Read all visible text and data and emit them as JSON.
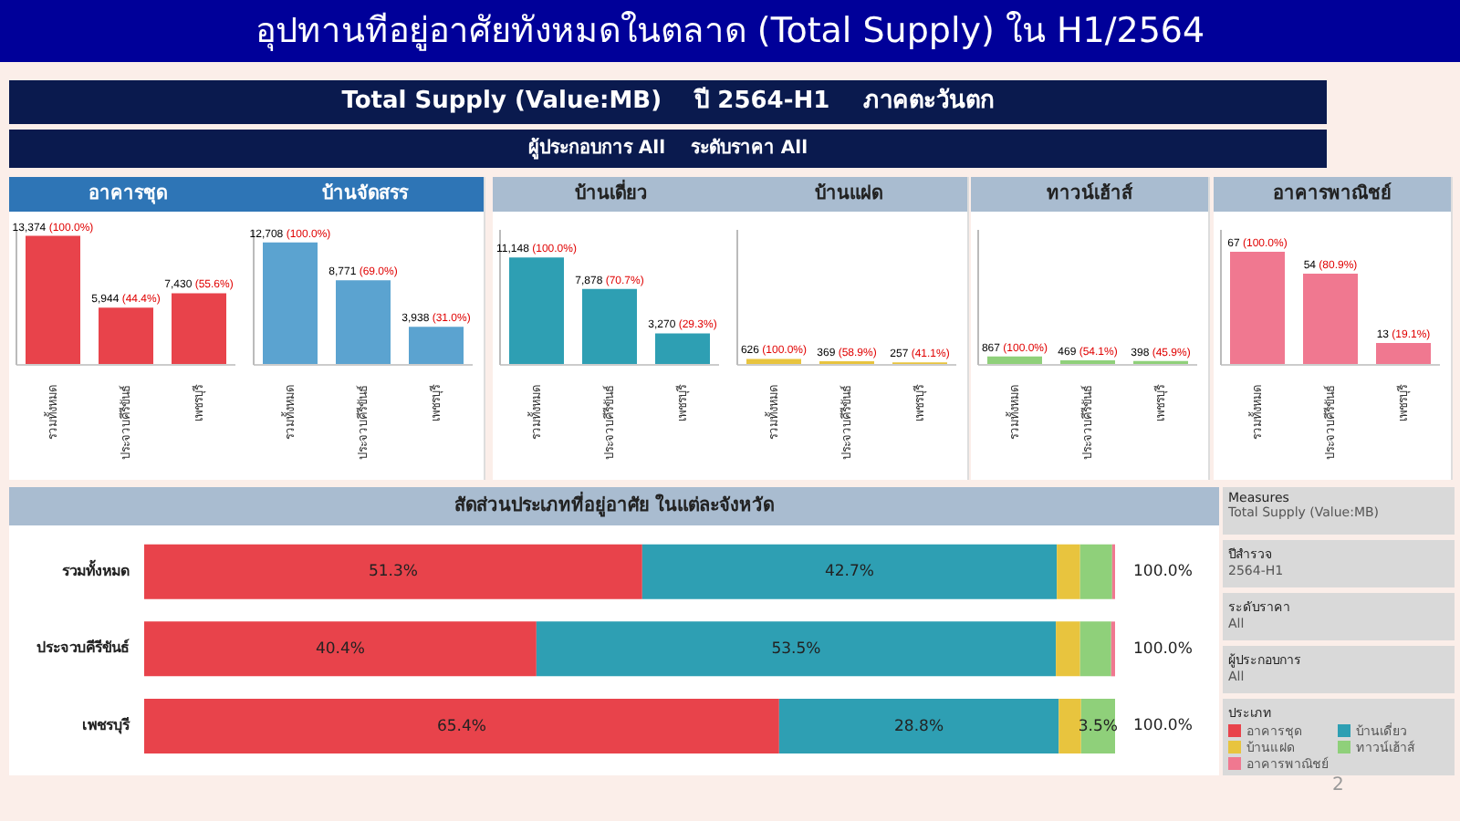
{
  "chart_data": [
    {
      "type": "other",
      "title": "อุปทานทีอยู่อาศัยทังหมดในตลาด (Total Supply) ใน H1/2564",
      "subtitle": "Total Supply (Value:MB)    ปี 2564-H1    ภาคตะวันตก",
      "annotations": [
        "ผู้ประกอบการ All    ระดับราคา All",
        "2"
      ]
    },
    {
      "type": "bar",
      "title": "อาคารชุด",
      "categories": [
        "รวมทั้งหมด",
        "ประจวบคีรีขันธ์",
        "เพชรบุรี"
      ],
      "values": [
        13374,
        5944,
        7430
      ],
      "value_labels": [
        "13,374 (100.0%)",
        "5,944 (44.4%)",
        "7,430 (55.6%)"
      ],
      "color": "#e8434b",
      "ylim": [
        0,
        14000
      ],
      "tick_labels": "x"
    },
    {
      "type": "bar",
      "title": "บ้านจัดสรร",
      "categories": [
        "รวมทั้งหมด",
        "ประจวบคีรีขันธ์",
        "เพชรบุรี"
      ],
      "values": [
        12708,
        8771,
        3938
      ],
      "value_labels": [
        "12,708 (100.0%)",
        "8,771 (69.0%)",
        "3,938 (31.0%)"
      ],
      "color": "#5ba3d0",
      "ylim": [
        0,
        14000
      ],
      "tick_labels": "x"
    },
    {
      "type": "bar",
      "title": "บ้านเดี่ยว",
      "categories": [
        "รวมทั้งหมด",
        "ประจวบคีรีขันธ์",
        "เพชรบุรี"
      ],
      "values": [
        11148,
        7878,
        3270
      ],
      "value_labels": [
        "11,148 (100.0%)",
        "7,878 (70.7%)",
        "3,270 (29.3%)"
      ],
      "color": "#2e9fb3",
      "ylim": [
        0,
        14000
      ],
      "tick_labels": "x"
    },
    {
      "type": "bar",
      "title": "บ้านแฝด",
      "categories": [
        "รวมทั้งหมด",
        "ประจวบคีรีขันธ์",
        "เพชรบุรี"
      ],
      "values": [
        626,
        369,
        257
      ],
      "value_labels": [
        "626 (100.0%)",
        "369 (58.9%)",
        "257 (41.1%)"
      ],
      "color": "#e8c43e",
      "ylim": [
        0,
        14000
      ],
      "tick_labels": "x"
    },
    {
      "type": "bar",
      "title": "ทาวน์เฮ้าส์",
      "categories": [
        "รวมทั้งหมด",
        "ประจวบคีรีขันธ์",
        "เพชรบุรี"
      ],
      "values": [
        867,
        469,
        398
      ],
      "value_labels": [
        "867 (100.0%)",
        "469 (54.1%)",
        "398 (45.9%)"
      ],
      "color": "#8fd07a",
      "ylim": [
        0,
        14000
      ],
      "tick_labels": "x"
    },
    {
      "type": "bar",
      "title": "อาคารพาณิชย์",
      "categories": [
        "รวมทั้งหมด",
        "ประจวบคีรีขันธ์",
        "เพชรบุรี"
      ],
      "values": [
        67,
        54,
        13
      ],
      "value_labels": [
        "67 (100.0%)",
        "54 (80.9%)",
        "13 (19.1%)"
      ],
      "color": "#f07890",
      "tick_labels": "x"
    },
    {
      "type": "bar",
      "orientation": "horizontal",
      "stacked": true,
      "title": "สัดส่วนประเภทที่อยู่อาศัย ในแต่ละจังหวัด",
      "categories": [
        "รวมทั้งหมด",
        "ประจวบคีรีขันธ์",
        "เพชรบุรี"
      ],
      "xlim": [
        0,
        100
      ],
      "tick_labels": "y",
      "legend": "right",
      "legend_title": "ประเภท",
      "totals": [
        "100.0%",
        "100.0%",
        "100.0%"
      ],
      "series": [
        {
          "name": "อาคารชุด",
          "color": "#e8434b",
          "values": [
            51.3,
            40.4,
            65.4
          ],
          "value_labels": [
            "51.3%",
            "40.4%",
            "65.4%"
          ]
        },
        {
          "name": "บ้านเดี่ยว",
          "color": "#2e9fb3",
          "values": [
            42.7,
            53.5,
            28.8
          ],
          "value_labels": [
            "42.7%",
            "53.5%",
            "28.8%"
          ]
        },
        {
          "name": "บ้านแฝด",
          "color": "#e8c43e",
          "values": [
            2.4,
            2.5,
            2.3
          ]
        },
        {
          "name": "ทาวน์เฮ้าส์",
          "color": "#8fd07a",
          "values": [
            3.3,
            3.2,
            3.5
          ],
          "value_labels": [
            null,
            null,
            "3.5%"
          ]
        },
        {
          "name": "อาคารพาณิชย์",
          "color": "#f07890",
          "values": [
            0.3,
            0.4,
            0.1
          ]
        }
      ],
      "annotations": [
        "Measures",
        "Total Supply (Value:MB)",
        "ปีสำรวจ",
        "2564-H1",
        "ระดับราคา",
        "All",
        "ผู้ประกอบการ",
        "All"
      ]
    }
  ]
}
